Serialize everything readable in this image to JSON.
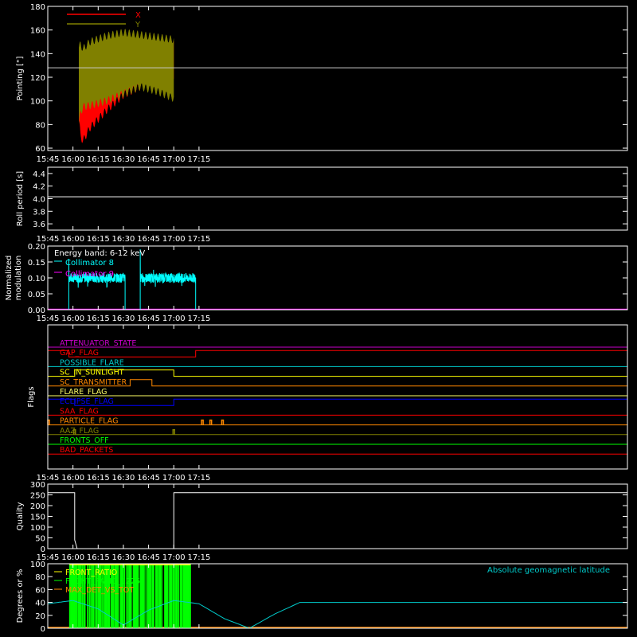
{
  "chart_data": [
    {
      "type": "line",
      "panel": "pointing",
      "ylabel": "Pointing [\"]",
      "ylim": [
        58,
        180
      ],
      "yticks": [
        60,
        80,
        100,
        120,
        140,
        160,
        180
      ],
      "xlabel": "",
      "xrange_min": [
        945,
        1290
      ],
      "xticks": [
        "15:45",
        "16:00",
        "16:15",
        "16:30",
        "16:45",
        "17:00",
        "17:15"
      ],
      "reference_line": 128,
      "series": [
        {
          "name": "X",
          "color": "#ff0000",
          "t_start_min": 963.5,
          "t_end_min": 1020,
          "x": [
            963.5,
            964.5,
            966,
            970,
            980,
            990,
            1000,
            1010,
            1020
          ],
          "upper": [
            142,
            120,
            112,
            118,
            128,
            136,
            145,
            148,
            150
          ],
          "lower": [
            85,
            70,
            66,
            77,
            92,
            105,
            112,
            116,
            118
          ]
        },
        {
          "name": "Y",
          "color": "#808000",
          "t_start_min": 963.5,
          "t_end_min": 1020,
          "x": [
            963.5,
            964.5,
            966,
            970,
            980,
            990,
            1000,
            1010,
            1020
          ],
          "upper": [
            145,
            148,
            144,
            150,
            155,
            158,
            156,
            154,
            152
          ],
          "lower": [
            80,
            90,
            95,
            96,
            100,
            106,
            112,
            108,
            102
          ]
        }
      ]
    },
    {
      "type": "line",
      "panel": "roll_period",
      "ylabel": "Roll period [s]",
      "ylim": [
        3.5,
        4.5
      ],
      "yticks": [
        "3.6",
        "3.8",
        "4.0",
        "4.2",
        "4.4"
      ],
      "series": [
        {
          "name": "",
          "color": "#ffffff",
          "x": [
            945,
            1290
          ],
          "values": [
            4.03,
            4.03
          ]
        }
      ]
    },
    {
      "type": "line",
      "panel": "modulation",
      "ylabel": "Normalized modulation",
      "ylim": [
        0,
        0.2
      ],
      "yticks": [
        "0.00",
        "0.05",
        "0.10",
        "0.15",
        "0.20"
      ],
      "annotation": "Energy band: 6-12 keV",
      "series": [
        {
          "name": "Collimator 8",
          "color": "#00ffff",
          "segments": [
            {
              "x": [
                957.5,
                991
              ],
              "level": 0.1,
              "spike": 0.16
            },
            {
              "x": [
                1000,
                1033
              ],
              "level": 0.1,
              "spike": 0.19
            }
          ]
        },
        {
          "name": "Collimator 9",
          "color": "#ff00ff",
          "x": [
            945,
            1290
          ],
          "values": [
            0,
            0
          ]
        }
      ]
    },
    {
      "type": "line",
      "panel": "flags",
      "ylabel": "Flags",
      "series": [
        {
          "name": "ATTENUATOR_STATE",
          "color": "#cc00cc",
          "steps": []
        },
        {
          "name": "GAP_FLAG",
          "color": "#ff0000",
          "steps": [
            [
              945,
              957.5,
              1
            ],
            [
              957.5,
              1033,
              0
            ],
            [
              1033,
              1290,
              1
            ]
          ]
        },
        {
          "name": "POSSIBLE_FLARE",
          "color": "#00cccc",
          "steps": []
        },
        {
          "name": "SC_IN_SUNLIGHT",
          "color": "#ffff00",
          "steps": [
            [
              945,
              961,
              0
            ],
            [
              961,
              1020,
              1
            ],
            [
              1020,
              1290,
              0
            ]
          ]
        },
        {
          "name": "SC_TRANSMITTER",
          "color": "#ff8800",
          "steps": [
            [
              945,
              994,
              0
            ],
            [
              994,
              1007,
              1
            ],
            [
              1007,
              1290,
              0
            ]
          ]
        },
        {
          "name": "FLARE_FLAG",
          "color": "#ffff66",
          "steps": []
        },
        {
          "name": "ECLIPSE_FLAG",
          "color": "#0000ff",
          "steps": [
            [
              945,
              961,
              1
            ],
            [
              961,
              1020,
              0
            ],
            [
              1020,
              1290,
              1
            ]
          ]
        },
        {
          "name": "SAA_FLAG",
          "color": "#ff0000",
          "steps": []
        },
        {
          "name": "PARTICLE_FLAG",
          "color": "#ff8800",
          "spikes": [
            945.5,
            1037,
            1042,
            1049
          ]
        },
        {
          "name": "AAZ_FLAG",
          "color": "#808000",
          "spikes": [
            961,
            1020
          ]
        },
        {
          "name": "FRONTS_OFF",
          "color": "#00ff00",
          "steps": []
        },
        {
          "name": "BAD_PACKETS",
          "color": "#ff0000",
          "steps": []
        }
      ]
    },
    {
      "type": "line",
      "panel": "quality",
      "ylabel": "Quality",
      "ylim": [
        0,
        300
      ],
      "yticks": [
        "0",
        "50",
        "100",
        "150",
        "200",
        "250",
        "300"
      ],
      "series": [
        {
          "name": "",
          "color": "#ffffff",
          "x": [
            945,
            961,
            961,
            962.5,
            962.5,
            1020,
            1020,
            1290
          ],
          "values": [
            260,
            260,
            40,
            0,
            0,
            0,
            260,
            260
          ]
        }
      ]
    },
    {
      "type": "line",
      "panel": "ratios",
      "ylabel": "Degrees or %",
      "ylim": [
        0,
        100
      ],
      "yticks": [
        "0",
        "20",
        "40",
        "60",
        "80",
        "100"
      ],
      "legend_right": "Absolute geomagnetic latitude",
      "series": [
        {
          "name": "FRONT_RATIO",
          "color": "#ffff00",
          "x": [
            958,
            1030
          ],
          "values": [
            100,
            100
          ]
        },
        {
          "name": "FRONT_RATIO_1225",
          "color": "#00ff00",
          "x": [
            958,
            1030
          ],
          "values": [
            100,
            100
          ]
        },
        {
          "name": "MAX_DET_VS_TOT",
          "color": "#ff8800",
          "x": [
            945,
            1290
          ],
          "values": [
            0,
            0
          ]
        },
        {
          "name": "Absolute geomagnetic latitude",
          "color": "#00cccc",
          "x": [
            945,
            960,
            975,
            990,
            1005,
            1020,
            1035,
            1050,
            1065,
            1080,
            1095
          ],
          "values": [
            38,
            43,
            30,
            5,
            28,
            43,
            38,
            15,
            0,
            22,
            40
          ]
        }
      ]
    }
  ]
}
